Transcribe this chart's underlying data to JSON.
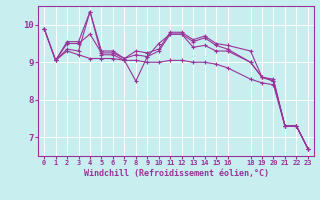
{
  "background_color": "#c8eef0",
  "line_color": "#993399",
  "grid_color": "#ffffff",
  "xlabel": "Windchill (Refroidissement éolien,°C)",
  "xlabel_color": "#993399",
  "xtick_color": "#993399",
  "ytick_color": "#993399",
  "axis_color": "#993399",
  "xlim": [
    -0.5,
    23.5
  ],
  "ylim": [
    6.5,
    10.5
  ],
  "yticks": [
    7,
    8,
    9,
    10
  ],
  "xticks": [
    0,
    1,
    2,
    3,
    4,
    5,
    6,
    7,
    8,
    9,
    10,
    11,
    12,
    13,
    14,
    15,
    16,
    18,
    19,
    20,
    21,
    22,
    23
  ],
  "series": [
    {
      "comment": "top wavy line - peaks at 0(9.9), 4(10.4), 11-12(9.8)",
      "x": [
        0,
        1,
        2,
        3,
        4,
        5,
        6,
        7,
        8,
        9,
        10,
        11,
        12,
        13,
        14,
        15,
        16,
        18,
        19,
        20,
        21,
        22,
        23
      ],
      "y": [
        9.9,
        9.05,
        9.55,
        9.55,
        10.35,
        9.3,
        9.3,
        9.1,
        9.3,
        9.25,
        9.35,
        9.8,
        9.8,
        9.6,
        9.7,
        9.5,
        9.45,
        9.3,
        8.6,
        8.55,
        7.3,
        7.3,
        6.7
      ]
    },
    {
      "x": [
        0,
        1,
        2,
        3,
        4,
        5,
        6,
        7,
        8,
        9,
        10,
        11,
        12,
        13,
        14,
        15,
        16,
        18,
        19,
        20,
        21,
        22,
        23
      ],
      "y": [
        9.9,
        9.05,
        9.5,
        9.5,
        9.75,
        9.25,
        9.25,
        9.1,
        9.2,
        9.15,
        9.5,
        9.75,
        9.75,
        9.4,
        9.45,
        9.3,
        9.3,
        9.0,
        8.6,
        8.5,
        7.3,
        7.3,
        6.7
      ]
    },
    {
      "x": [
        1,
        2,
        3,
        4,
        5,
        6,
        7,
        8,
        9,
        10,
        11,
        12,
        13,
        14,
        15,
        16,
        18,
        19,
        20,
        21,
        22,
        23
      ],
      "y": [
        9.05,
        9.35,
        9.3,
        10.35,
        9.2,
        9.2,
        9.05,
        8.5,
        9.15,
        9.3,
        9.75,
        9.75,
        9.55,
        9.65,
        9.45,
        9.35,
        9.0,
        8.6,
        8.5,
        7.3,
        7.3,
        6.7
      ]
    },
    {
      "x": [
        0,
        1,
        2,
        3,
        4,
        5,
        6,
        7,
        8,
        9,
        10,
        11,
        12,
        13,
        14,
        15,
        16,
        18,
        19,
        20,
        21,
        22,
        23
      ],
      "y": [
        9.9,
        9.05,
        9.3,
        9.2,
        9.1,
        9.1,
        9.1,
        9.05,
        9.05,
        9.0,
        9.0,
        9.05,
        9.05,
        9.0,
        9.0,
        8.95,
        8.85,
        8.55,
        8.45,
        8.4,
        7.3,
        7.3,
        6.7
      ]
    }
  ]
}
